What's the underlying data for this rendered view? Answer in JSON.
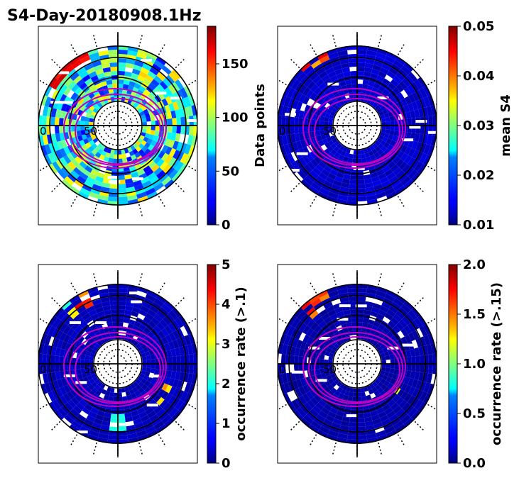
{
  "title": "S4-Day-20180908.1Hz",
  "chart_data": [
    {
      "type": "heatmap",
      "projection": "polar",
      "colormap": "jet",
      "colorbar_label": "Data points",
      "colorbar_range": [
        0,
        185
      ],
      "colorbar_ticks": [
        "0",
        "50",
        "100",
        "150"
      ],
      "tick_values": [
        0,
        50,
        100,
        150
      ],
      "axis_labels": [
        "0",
        "50"
      ],
      "overlay_colors": {
        "rings": "#000000",
        "tracks": "#c000c0"
      }
    },
    {
      "type": "heatmap",
      "projection": "polar",
      "colormap": "jet",
      "colorbar_label": "mean S4",
      "colorbar_range": [
        0.01,
        0.05
      ],
      "colorbar_ticks": [
        "0.01",
        "0.02",
        "0.03",
        "0.04",
        "0.05"
      ],
      "tick_values": [
        0.01,
        0.02,
        0.03,
        0.04,
        0.05
      ],
      "axis_labels": [
        "0",
        "50"
      ],
      "overlay_colors": {
        "rings": "#000000",
        "tracks": "#c000c0"
      }
    },
    {
      "type": "heatmap",
      "projection": "polar",
      "colormap": "jet",
      "colorbar_label": "occurrence rate (>.1)",
      "colorbar_range": [
        0,
        5
      ],
      "colorbar_ticks": [
        "0",
        "1",
        "2",
        "3",
        "4",
        "5"
      ],
      "tick_values": [
        0,
        1,
        2,
        3,
        4,
        5
      ],
      "axis_labels": [
        "0",
        "50"
      ],
      "overlay_colors": {
        "rings": "#000000",
        "tracks": "#c000c0"
      }
    },
    {
      "type": "heatmap",
      "projection": "polar",
      "colormap": "jet",
      "colorbar_label": "occurrence rate (>.15)",
      "colorbar_range": [
        0,
        2
      ],
      "colorbar_ticks": [
        "0.0",
        "0.5",
        "1.0",
        "1.5",
        "2.0"
      ],
      "tick_values": [
        0,
        0.5,
        1,
        1.5,
        2
      ],
      "axis_labels": [
        "0",
        "50"
      ],
      "overlay_colors": {
        "rings": "#000000",
        "tracks": "#c000c0"
      }
    }
  ]
}
